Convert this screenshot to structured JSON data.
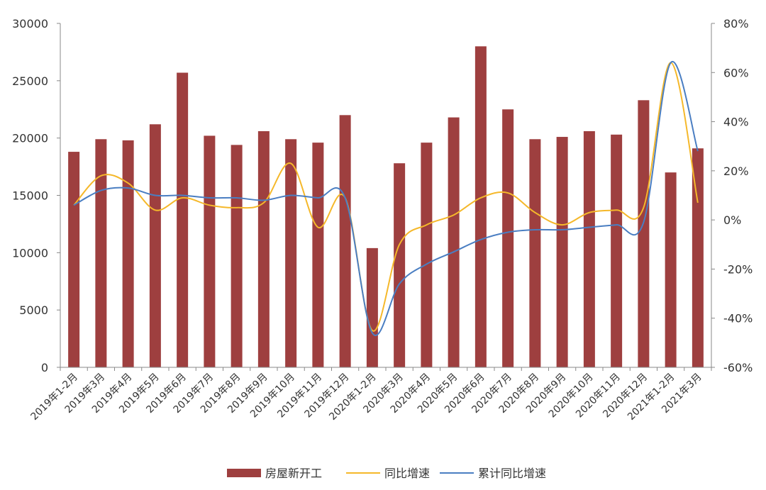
{
  "chart_data": {
    "type": "bar",
    "categories": [
      "2019年1-2月",
      "2019年3月",
      "2019年4月",
      "2019年5月",
      "2019年6月",
      "2019年7月",
      "2019年8月",
      "2019年9月",
      "2019年10月",
      "2019年11月",
      "2019年12月",
      "2020年1-2月",
      "2020年3月",
      "2020年4月",
      "2020年5月",
      "2020年6月",
      "2020年7月",
      "2020年8月",
      "2020年9月",
      "2020年10月",
      "2020年11月",
      "2020年12月",
      "2021年1-2月",
      "2021年3月"
    ],
    "series": [
      {
        "name": "房屋新开工",
        "type": "bar",
        "axis": "left",
        "color": "#9e3f3f",
        "values": [
          18800,
          19900,
          19800,
          21200,
          25700,
          20200,
          19400,
          20600,
          19900,
          19600,
          22000,
          10400,
          17800,
          19600,
          21800,
          28000,
          22500,
          19900,
          20100,
          20600,
          20300,
          23300,
          17000,
          19100
        ]
      },
      {
        "name": "同比增速",
        "type": "line",
        "axis": "right",
        "color": "#f5b82a",
        "values": [
          6,
          18,
          15,
          4,
          9,
          6,
          5,
          7,
          23,
          -3,
          9,
          -45,
          -10,
          -2,
          2,
          9,
          11,
          3,
          -2,
          3,
          4,
          5,
          64,
          7
        ]
      },
      {
        "name": "累计同比增速",
        "type": "line",
        "axis": "right",
        "color": "#4a7ec2",
        "values": [
          6,
          12,
          13,
          10,
          10,
          9,
          9,
          8,
          10,
          9,
          9,
          -46,
          -26,
          -18,
          -13,
          -8,
          -5,
          -4,
          -4,
          -3,
          -2,
          -1,
          64,
          28
        ]
      }
    ],
    "left_axis": {
      "min": 0,
      "max": 30000,
      "ticks": [
        0,
        5000,
        10000,
        15000,
        20000,
        25000,
        30000
      ],
      "tick_labels": [
        "0",
        "5000",
        "10000",
        "15000",
        "20000",
        "25000",
        "30000"
      ]
    },
    "right_axis": {
      "min": -60,
      "max": 80,
      "ticks": [
        -60,
        -40,
        -20,
        0,
        20,
        40,
        60,
        80
      ],
      "tick_labels": [
        "-60%",
        "-40%",
        "-20%",
        "0%",
        "20%",
        "40%",
        "60%",
        "80%"
      ]
    },
    "title": "",
    "xlabel": "",
    "ylabel": "",
    "grid": false,
    "legend_position": "bottom"
  }
}
